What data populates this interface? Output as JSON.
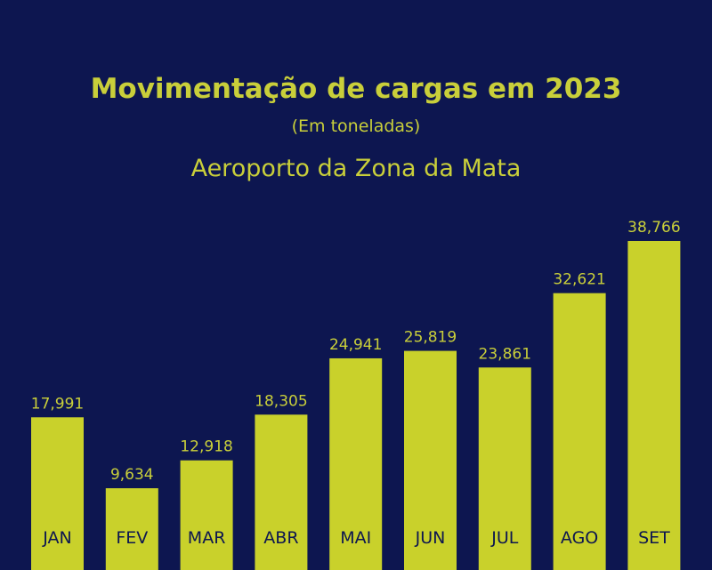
{
  "chart_data": {
    "type": "bar",
    "title": "Movimentação de cargas em 2023",
    "subtitle": "(Em toneladas)",
    "subtitle2": "Aeroporto da Zona da Mata",
    "categories": [
      "JAN",
      "FEV",
      "MAR",
      "ABR",
      "MAI",
      "JUN",
      "JUL",
      "AGO",
      "SET"
    ],
    "values": [
      17991,
      9634,
      12918,
      18305,
      24941,
      25819,
      23861,
      32621,
      38766
    ],
    "value_labels": [
      "17,991",
      "9,634",
      "12,918",
      "18,305",
      "24,941",
      "25,819",
      "23,861",
      "32,621",
      "38,766"
    ],
    "xlabel": "",
    "ylabel": "",
    "ylim": [
      0,
      38766
    ],
    "grid": false
  },
  "colors": {
    "background": "#0d1650",
    "bar": "#c9d12b",
    "text": "#c9cf3a"
  }
}
